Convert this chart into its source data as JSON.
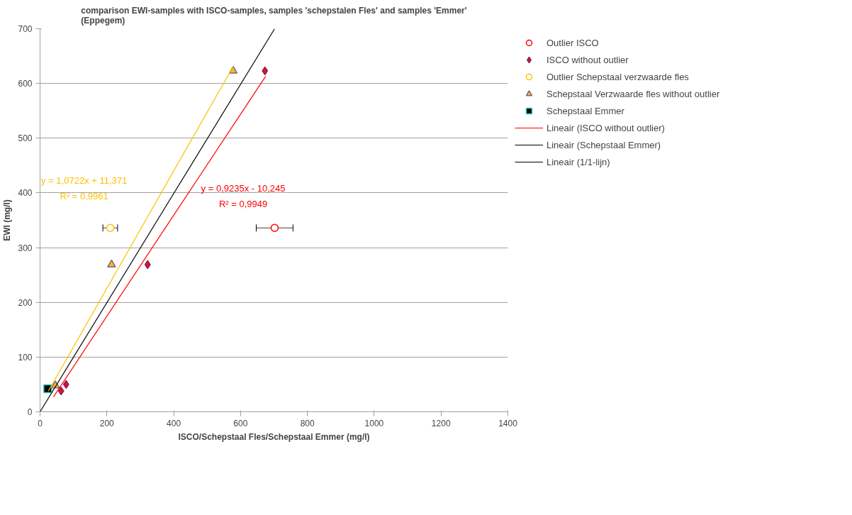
{
  "chart_data": {
    "type": "scatter",
    "title": "comparison EWI-samples with ISCO-samples, samples 'schepstalen Fles' and samples 'Emmer'\n(Eppegem)",
    "xlabel": "ISCO/Schepstaal Fles/Schepstaal Emmer (mg/l)",
    "ylabel": "EWI (mg/l)",
    "xlim": [
      0,
      1400
    ],
    "ylim": [
      0,
      700
    ],
    "xticks": [
      0,
      200,
      400,
      600,
      800,
      1000,
      1200,
      1400
    ],
    "yticks": [
      0,
      100,
      200,
      300,
      400,
      500,
      600,
      700
    ],
    "grid": "y",
    "legend": "right",
    "series": [
      {
        "name": "Outlier ISCO",
        "color": "#ff0000",
        "marker": "circle",
        "x": [
          702
        ],
        "values": [
          336
        ],
        "xerrors": [
          55
        ]
      },
      {
        "name": "ISCO without outlier",
        "color": "#e0102a",
        "marker": "diamond",
        "x": [
          673,
          322,
          78,
          63
        ],
        "values": [
          623,
          269,
          50,
          38
        ]
      },
      {
        "name": "Outlier Schepstaal verzwaarde fles",
        "color": "#ffc000",
        "marker": "circle",
        "x": [
          210
        ],
        "values": [
          336
        ],
        "xerrors": [
          22
        ]
      },
      {
        "name": "Schepstaal Verzwaarde fles without outlier",
        "color": "#ffc000",
        "marker": "triangle",
        "x": [
          578,
          214,
          46
        ],
        "values": [
          623,
          269,
          48
        ]
      },
      {
        "name": "Schepstaal Emmer",
        "color": "#000000",
        "marker": "square",
        "x": [
          23
        ],
        "values": [
          42
        ]
      },
      {
        "name": "Lineair (ISCO without outlier)",
        "type": "line",
        "color": "#ff0000",
        "x": [
          40,
          675
        ],
        "values": [
          27,
          613
        ]
      },
      {
        "name": "Lineair (Schepstaal Emmer)",
        "type": "line",
        "color": "#000000"
      },
      {
        "name": "Lineair (1/1-lijn)",
        "type": "line",
        "color": "#000000",
        "x": [
          0,
          702
        ],
        "values": [
          0,
          700
        ]
      },
      {
        "type": "line",
        "color": "#ffc000",
        "x": [
          25,
          578
        ],
        "values": [
          38,
          631
        ]
      }
    ],
    "annotations": [
      "y = 1,0722x + 11,371",
      "R² = 0,9961",
      "y = 0,9235x - 10,245",
      "R² = 0,9949"
    ]
  }
}
